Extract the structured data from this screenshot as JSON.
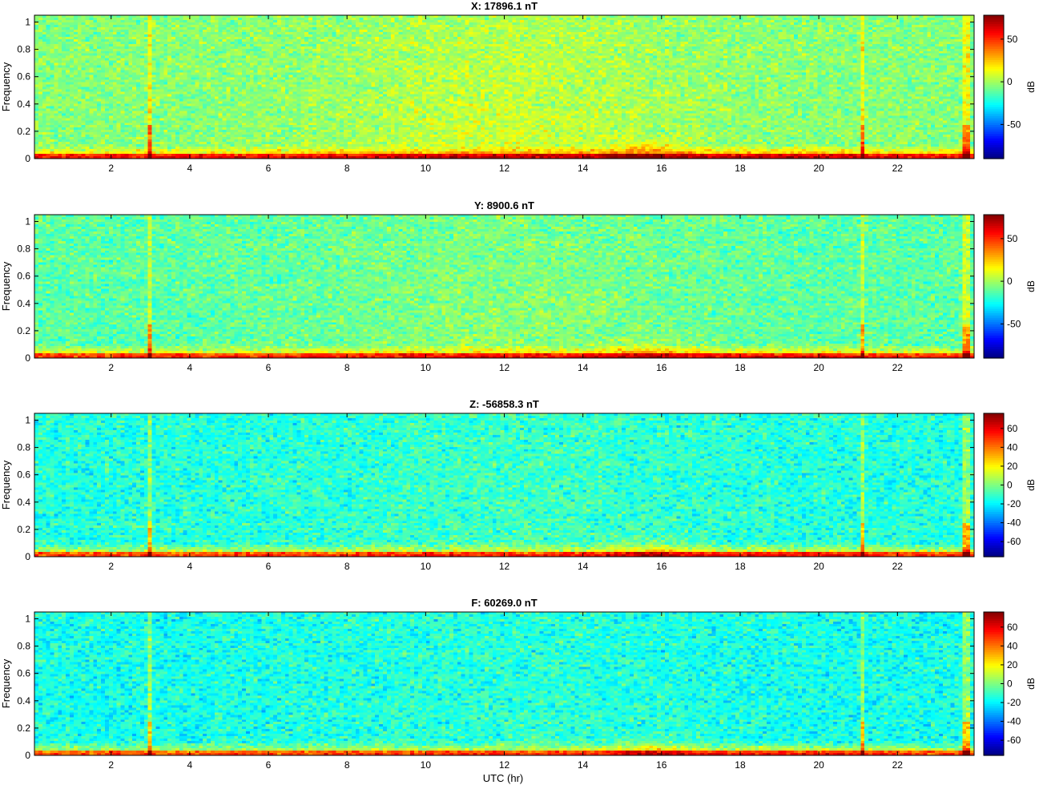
{
  "figure": {
    "xlabel": "UTC (hr)"
  },
  "chart_data": [
    {
      "type": "heatmap",
      "title": "X: 17896.1 nT",
      "ylabel": "Frequency",
      "xlim": [
        0.05,
        23.95
      ],
      "ylim": [
        0,
        1.05
      ],
      "xticks": [
        2,
        4,
        6,
        8,
        10,
        12,
        14,
        16,
        18,
        20,
        22
      ],
      "yticks": [
        0,
        0.2,
        0.4,
        0.6,
        0.8,
        1
      ],
      "colorbar": {
        "label": "dB",
        "range": [
          -90,
          78
        ],
        "ticks": [
          -50,
          0,
          50
        ]
      },
      "colormap": "jet",
      "background_db": -5,
      "midday_enhancement_db": 12,
      "low_freq_band_db": 35,
      "spikes_hr": [
        2.95,
        21.15,
        23.75
      ]
    },
    {
      "type": "heatmap",
      "title": "Y: 8900.6 nT",
      "ylabel": "Frequency",
      "xlim": [
        0.05,
        23.95
      ],
      "ylim": [
        0,
        1.05
      ],
      "xticks": [
        2,
        4,
        6,
        8,
        10,
        12,
        14,
        16,
        18,
        20,
        22
      ],
      "yticks": [
        0,
        0.2,
        0.4,
        0.6,
        0.8,
        1
      ],
      "colorbar": {
        "label": "dB",
        "range": [
          -90,
          78
        ],
        "ticks": [
          -50,
          0,
          50
        ]
      },
      "colormap": "jet",
      "background_db": -12,
      "midday_enhancement_db": 8,
      "low_freq_band_db": 35,
      "spikes_hr": [
        2.95,
        21.15,
        23.75
      ]
    },
    {
      "type": "heatmap",
      "title": "Z: -56858.3 nT",
      "ylabel": "Frequency",
      "xlim": [
        0.05,
        23.95
      ],
      "ylim": [
        0,
        1.05
      ],
      "xticks": [
        2,
        4,
        6,
        8,
        10,
        12,
        14,
        16,
        18,
        20,
        22
      ],
      "yticks": [
        0,
        0.2,
        0.4,
        0.6,
        0.8,
        1
      ],
      "colorbar": {
        "label": "dB",
        "range": [
          -76,
          76
        ],
        "ticks": [
          -60,
          -40,
          -20,
          0,
          20,
          40,
          60
        ]
      },
      "colormap": "jet",
      "background_db": -14,
      "midday_enhancement_db": 5,
      "low_freq_band_db": 35,
      "spikes_hr": [
        3.0,
        21.15,
        23.75
      ]
    },
    {
      "type": "heatmap",
      "title": "F: 60269.0 nT",
      "ylabel": "Frequency",
      "xlim": [
        0.05,
        23.95
      ],
      "ylim": [
        0,
        1.05
      ],
      "xticks": [
        2,
        4,
        6,
        8,
        10,
        12,
        14,
        16,
        18,
        20,
        22
      ],
      "yticks": [
        0,
        0.2,
        0.4,
        0.6,
        0.8,
        1
      ],
      "colorbar": {
        "label": "dB",
        "range": [
          -76,
          76
        ],
        "ticks": [
          -60,
          -40,
          -20,
          0,
          20,
          40,
          60
        ]
      },
      "colormap": "jet",
      "background_db": -16,
      "midday_enhancement_db": 4,
      "low_freq_band_db": 35,
      "spikes_hr": [
        3.0,
        21.15,
        23.75
      ]
    }
  ]
}
